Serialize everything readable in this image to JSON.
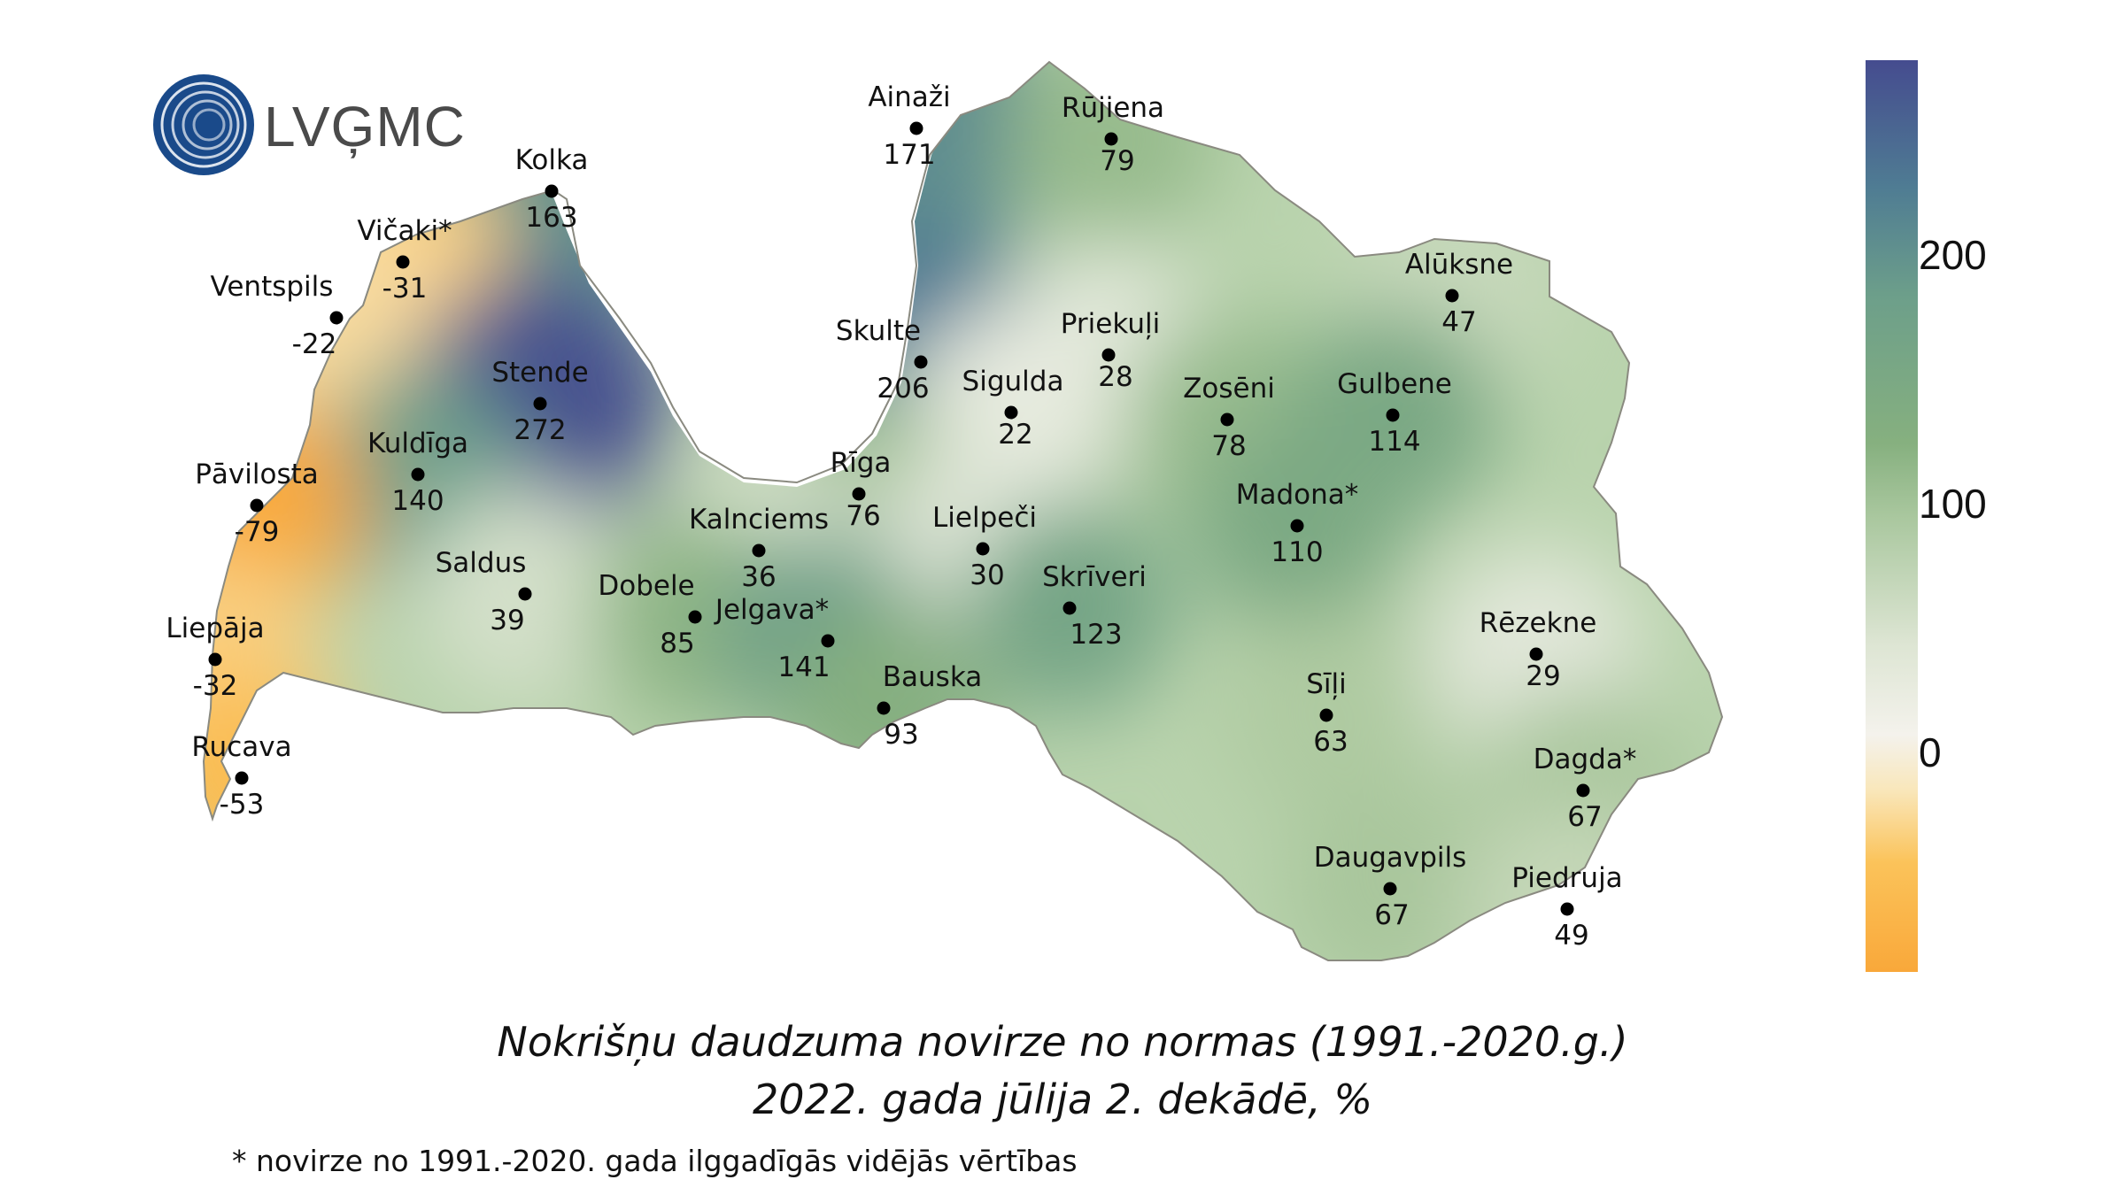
{
  "logo": {
    "text": "LVĢMC"
  },
  "caption": {
    "line1": "Nokrišņu daudzuma novirze no normas (1991.-2020.g.)",
    "line2": "2022. gada jūlija 2. dekādē, %"
  },
  "footnote": "* novirze no 1991.-2020. gada ilggadīgās vidējās vērtības",
  "legend": {
    "ticks": [
      "200",
      "100",
      "0"
    ],
    "colors": {
      "high": "#454c8f",
      "mid_high": "#6d9f8a",
      "mid": "#86b07f",
      "zero": "#f4f2ec",
      "low": "#fbc35a",
      "min": "#f9a83a"
    }
  },
  "stations": [
    {
      "name": "Ainaži",
      "value": "171"
    },
    {
      "name": "Rūjiena",
      "value": "79"
    },
    {
      "name": "Kolka",
      "value": "163"
    },
    {
      "name": "Vičaki*",
      "value": "-31"
    },
    {
      "name": "Ventspils",
      "value": "-22"
    },
    {
      "name": "Stende",
      "value": "272"
    },
    {
      "name": "Skulte",
      "value": "206"
    },
    {
      "name": "Priekuļi",
      "value": "28"
    },
    {
      "name": "Alūksne",
      "value": "47"
    },
    {
      "name": "Sigulda",
      "value": "22"
    },
    {
      "name": "Zosēni",
      "value": "78"
    },
    {
      "name": "Gulbene",
      "value": "114"
    },
    {
      "name": "Kuldīga",
      "value": "140"
    },
    {
      "name": "Pāvilosta",
      "value": "-79"
    },
    {
      "name": "Rīga",
      "value": "76"
    },
    {
      "name": "Kalnciems",
      "value": "36"
    },
    {
      "name": "Lielpeči",
      "value": "30"
    },
    {
      "name": "Madona*",
      "value": "110"
    },
    {
      "name": "Saldus",
      "value": "39"
    },
    {
      "name": "Dobele",
      "value": "85"
    },
    {
      "name": "Jelgava*",
      "value": "141"
    },
    {
      "name": "Skrīveri",
      "value": "123"
    },
    {
      "name": "Rēzekne",
      "value": "29"
    },
    {
      "name": "Liepāja",
      "value": "-32"
    },
    {
      "name": "Bauska",
      "value": "93"
    },
    {
      "name": "Sīļi",
      "value": "63"
    },
    {
      "name": "Rucava",
      "value": "-53"
    },
    {
      "name": "Dagda*",
      "value": "67"
    },
    {
      "name": "Daugavpils",
      "value": "67"
    },
    {
      "name": "Piedruja",
      "value": "49"
    }
  ]
}
